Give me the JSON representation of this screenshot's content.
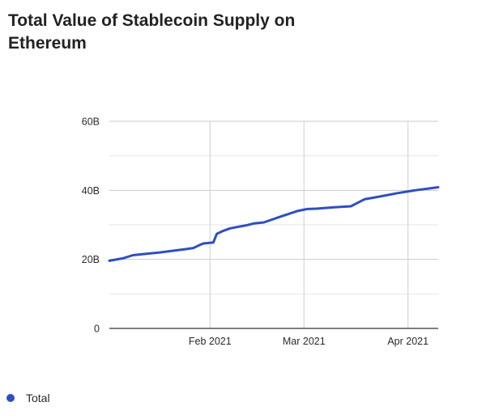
{
  "title": "Total Value of Stablecoin Supply on Ethereum",
  "chart_data": {
    "type": "line",
    "x_type": "date",
    "xlim": [
      "2021-01-02",
      "2021-04-10"
    ],
    "ylim": [
      0,
      60000000000
    ],
    "y_ticks": [
      {
        "value": 0,
        "label": "0"
      },
      {
        "value": 20000000000,
        "label": "20B"
      },
      {
        "value": 40000000000,
        "label": "40B"
      },
      {
        "value": 60000000000,
        "label": "60B"
      }
    ],
    "x_ticks": [
      {
        "value": "2021-02-01",
        "label": "Feb 2021"
      },
      {
        "value": "2021-03-01",
        "label": "Mar 2021"
      },
      {
        "value": "2021-04-01",
        "label": "Apr 2021"
      }
    ],
    "grid": true,
    "legend_position": "bottom-left",
    "series": [
      {
        "name": "Total",
        "color": "#2e4fc0",
        "points": [
          {
            "x": "2021-01-02",
            "y": 19600000000
          },
          {
            "x": "2021-01-06",
            "y": 20300000000
          },
          {
            "x": "2021-01-09",
            "y": 21200000000
          },
          {
            "x": "2021-01-13",
            "y": 21600000000
          },
          {
            "x": "2021-01-17",
            "y": 22000000000
          },
          {
            "x": "2021-01-21",
            "y": 22500000000
          },
          {
            "x": "2021-01-25",
            "y": 23000000000
          },
          {
            "x": "2021-01-27",
            "y": 23300000000
          },
          {
            "x": "2021-01-29",
            "y": 24200000000
          },
          {
            "x": "2021-01-30",
            "y": 24600000000
          },
          {
            "x": "2021-02-02",
            "y": 24900000000
          },
          {
            "x": "2021-02-03",
            "y": 27400000000
          },
          {
            "x": "2021-02-05",
            "y": 28300000000
          },
          {
            "x": "2021-02-07",
            "y": 29000000000
          },
          {
            "x": "2021-02-12",
            "y": 29900000000
          },
          {
            "x": "2021-02-14",
            "y": 30400000000
          },
          {
            "x": "2021-02-17",
            "y": 30700000000
          },
          {
            "x": "2021-02-22",
            "y": 32400000000
          },
          {
            "x": "2021-02-27",
            "y": 34000000000
          },
          {
            "x": "2021-03-02",
            "y": 34600000000
          },
          {
            "x": "2021-03-05",
            "y": 34700000000
          },
          {
            "x": "2021-03-10",
            "y": 35100000000
          },
          {
            "x": "2021-03-15",
            "y": 35400000000
          },
          {
            "x": "2021-03-19",
            "y": 37400000000
          },
          {
            "x": "2021-03-24",
            "y": 38300000000
          },
          {
            "x": "2021-03-29",
            "y": 39200000000
          },
          {
            "x": "2021-04-03",
            "y": 40000000000
          },
          {
            "x": "2021-04-10",
            "y": 40900000000
          }
        ]
      }
    ]
  }
}
